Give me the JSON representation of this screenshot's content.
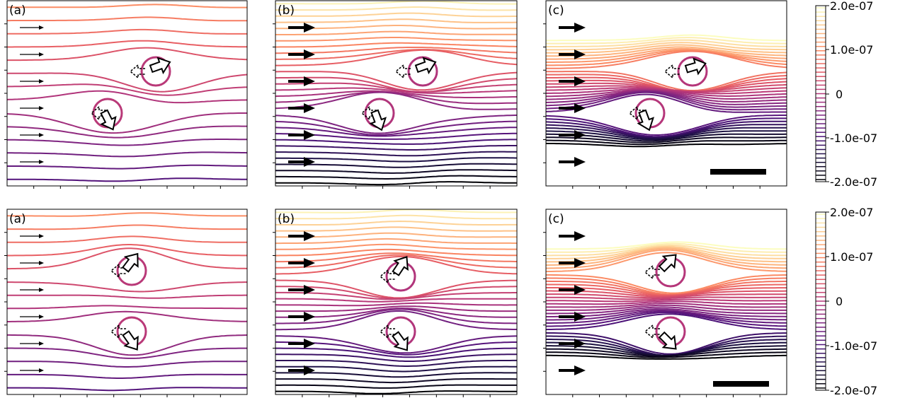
{
  "panel_labels": [
    "(a)",
    "(b)",
    "(c)"
  ],
  "colorbar": {
    "ticks": [
      "2.0e-07",
      "1.0e-07",
      "0",
      "-1.0e-07",
      "-2.0e-07"
    ],
    "values": [
      2e-07,
      1e-07,
      0,
      -1e-07,
      -2e-07
    ],
    "range": [
      -2e-07,
      2e-07
    ],
    "levels": 41,
    "colormap": "magma"
  },
  "rows": [
    {
      "name": "top",
      "panels": [
        {
          "label": "(a)",
          "arrows": "thin"
        },
        {
          "label": "(b)",
          "arrows": "thick"
        },
        {
          "label": "(c)",
          "arrows": "thick",
          "scale_bar": true
        }
      ]
    },
    {
      "name": "bottom",
      "panels": [
        {
          "label": "(a)",
          "arrows": "thin"
        },
        {
          "label": "(b)",
          "arrows": "thick"
        },
        {
          "label": "(c)",
          "arrows": "thick",
          "scale_bar": true
        }
      ]
    }
  ],
  "colors": {
    "frame": "#000000",
    "magma_low": "#000004",
    "magma_mid": "#b73779",
    "magma_high": "#fcfdbf"
  }
}
